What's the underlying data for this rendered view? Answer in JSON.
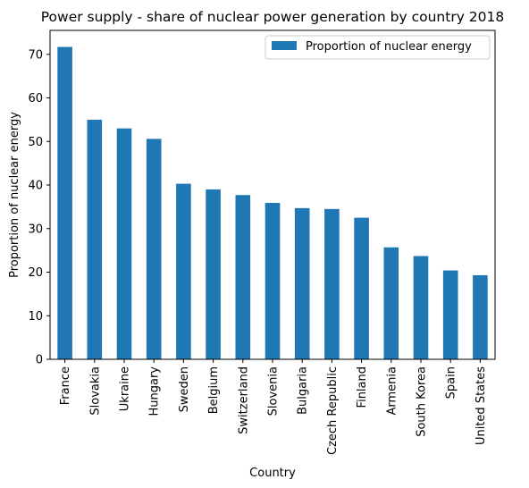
{
  "chart_data": {
    "type": "bar",
    "title": "Power supply - share of nuclear power generation by country 2018",
    "xlabel": "Country",
    "ylabel": "Proportion of nuclear energy",
    "categories": [
      "France",
      "Slovakia",
      "Ukraine",
      "Hungary",
      "Sweden",
      "Belgium",
      "Switzerland",
      "Slovenia",
      "Bulgaria",
      "Czech Republic",
      "Finland",
      "Armenia",
      "South Korea",
      "Spain",
      "United States"
    ],
    "series": [
      {
        "name": "Proportion of nuclear energy",
        "color": "#1f77b4",
        "values": [
          71.7,
          55.0,
          53.0,
          50.6,
          40.3,
          39.0,
          37.7,
          35.9,
          34.7,
          34.5,
          32.5,
          25.7,
          23.7,
          20.4,
          19.3
        ]
      }
    ],
    "ylim": [
      0,
      75.5
    ],
    "yticks": [
      0,
      10,
      20,
      30,
      40,
      50,
      60,
      70
    ],
    "grid": false,
    "legend_position": "top-right"
  }
}
